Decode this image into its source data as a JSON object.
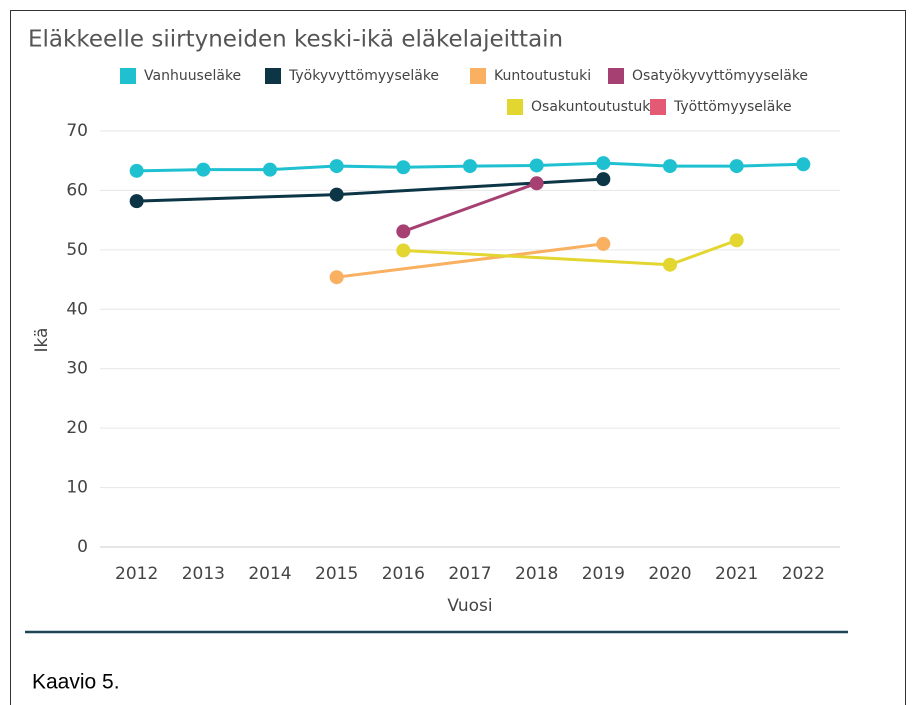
{
  "chart_data": {
    "type": "line",
    "title": "Eläkkeelle siirtyneiden keski-ikä eläkelajeittain",
    "x_label": "Vuosi",
    "y_label": "Ikä",
    "series": [
      {
        "name": "Vanhuuseläke",
        "color": "#1fc1d1",
        "x": [
          2012,
          2013,
          2014,
          2015,
          2016,
          2017,
          2018,
          2019,
          2020,
          2021,
          2022
        ],
        "values": [
          63.3,
          63.5,
          63.5,
          64.1,
          63.9,
          64.1,
          64.2,
          64.6,
          64.1,
          64.1,
          64.4
        ]
      },
      {
        "name": "Työkyvyttömyyseläke",
        "color": "#0c3545",
        "x": [
          2012,
          2015,
          2019
        ],
        "values": [
          58.2,
          59.3,
          61.9
        ]
      },
      {
        "name": "Kuntoutustuki",
        "color": "#f9b060",
        "x": [
          2015,
          2019
        ],
        "values": [
          45.4,
          51.0
        ]
      },
      {
        "name": "Osatyökyvyttömyyseläke",
        "color": "#a63f72",
        "x": [
          2016,
          2018
        ],
        "values": [
          53.1,
          61.2
        ]
      },
      {
        "name": "Osakuntoutustuki",
        "color": "#e3d631",
        "x": [
          2016,
          2020,
          2021
        ],
        "values": [
          49.9,
          47.5,
          51.6
        ]
      },
      {
        "name": "Työttömyyseläke",
        "color": "#e35a74",
        "x": [],
        "values": []
      }
    ],
    "xlim": [
      2011.45,
      2022.55
    ],
    "xticks": [
      2012,
      2013,
      2014,
      2015,
      2016,
      2017,
      2018,
      2019,
      2020,
      2021,
      2022
    ],
    "ylim": [
      0,
      70
    ],
    "yticks": [
      0,
      10,
      20,
      30,
      40,
      50,
      60,
      70
    ],
    "grid": true
  },
  "caption": "Kaavio 5."
}
